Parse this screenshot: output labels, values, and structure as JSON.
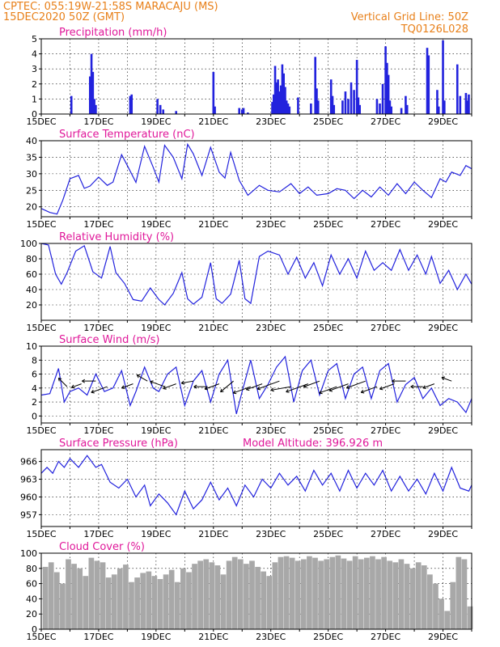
{
  "header": {
    "line1_left": "CPTEC:   055:19W-21:58S   MARACAJU (MS)",
    "line2_left": "15DEC2020 50Z (GMT)",
    "line1_right": "Vertical Grid Line: 50Z",
    "line2_right": "TQ0126L028"
  },
  "colors": {
    "header": "#e8801a",
    "title": "#e0189a",
    "series": "#2222dd",
    "cloud": "#a8a8a8"
  },
  "x_ticks": [
    "15DEC",
    "17DEC",
    "19DEC",
    "21DEC",
    "23DEC",
    "25DEC",
    "27DEC",
    "29DEC"
  ],
  "panels": [
    {
      "id": "precip",
      "title": "Precipitation (mm/h)",
      "extra": "",
      "yticks": [
        "0",
        "1",
        "2",
        "3",
        "4",
        "5"
      ],
      "ylim": [
        0,
        5
      ]
    },
    {
      "id": "temp",
      "title": "Surface Temperature (nC)",
      "extra": "",
      "yticks": [
        "20",
        "25",
        "30",
        "35",
        "40"
      ],
      "ylim": [
        17,
        40
      ]
    },
    {
      "id": "rh",
      "title": "Relative Humidity (%)",
      "extra": "",
      "yticks": [
        "20",
        "40",
        "60",
        "80",
        "100"
      ],
      "ylim": [
        0,
        100
      ]
    },
    {
      "id": "wind",
      "title": "Surface Wind (m/s)",
      "extra": "",
      "yticks": [
        "0",
        "2",
        "4",
        "6",
        "8",
        "10"
      ],
      "ylim": [
        -1,
        10
      ]
    },
    {
      "id": "pres",
      "title": "Surface Pressure (hPa)",
      "extra": "Model Altitude: 396.926 m",
      "yticks": [
        "957",
        "960",
        "963",
        "966"
      ],
      "ylim": [
        955,
        968
      ]
    },
    {
      "id": "cloud",
      "title": "Cloud Cover (%)",
      "extra": "",
      "yticks": [
        "0",
        "20",
        "40",
        "60",
        "80",
        "100"
      ],
      "ylim": [
        0,
        100
      ]
    }
  ],
  "chart_data": [
    {
      "type": "bar",
      "title": "Precipitation (mm/h)",
      "ylim": [
        0,
        5
      ],
      "x_unit": "day from 15DEC",
      "x": [
        1.05,
        1.7,
        1.75,
        1.8,
        1.85,
        1.9,
        3.1,
        3.15,
        4.05,
        4.15,
        4.25,
        4.7,
        6.0,
        6.05,
        6.9,
        7.0,
        7.05,
        7.2,
        8.05,
        8.1,
        8.15,
        8.2,
        8.25,
        8.3,
        8.35,
        8.4,
        8.45,
        8.5,
        8.55,
        8.6,
        8.65,
        8.95,
        9.4,
        9.55,
        9.6,
        9.65,
        10.1,
        10.15,
        10.2,
        10.5,
        10.6,
        10.7,
        10.8,
        10.9,
        11.0,
        11.05,
        11.1,
        11.7,
        11.8,
        11.9,
        12.0,
        12.05,
        12.1,
        12.15,
        12.2,
        12.55,
        12.7,
        12.75,
        13.45,
        13.5,
        13.8,
        13.85,
        14.0,
        14.05,
        14.5,
        14.6,
        14.8,
        14.85,
        14.9
      ],
      "values": [
        1.2,
        2.5,
        4.0,
        2.8,
        1.0,
        0.6,
        1.2,
        1.3,
        1.0,
        0.6,
        0.3,
        0.2,
        2.8,
        0.5,
        0.4,
        0.3,
        0.4,
        0.1,
        0.8,
        1.3,
        3.2,
        2.1,
        2.3,
        1.5,
        1.9,
        3.3,
        2.7,
        1.8,
        0.9,
        0.7,
        0.5,
        1.1,
        0.7,
        3.8,
        1.7,
        0.9,
        2.3,
        1.2,
        0.6,
        0.9,
        1.5,
        1.0,
        2.1,
        1.6,
        3.6,
        1.1,
        0.6,
        1.0,
        0.7,
        2.0,
        4.5,
        3.4,
        2.6,
        0.9,
        0.5,
        0.4,
        1.2,
        0.6,
        4.4,
        3.9,
        1.6,
        0.5,
        4.9,
        0.9,
        3.3,
        1.2,
        1.4,
        0.9,
        1.3
      ]
    },
    {
      "type": "line",
      "title": "Surface Temperature (nC)",
      "ylim": [
        17,
        40
      ],
      "x_unit": "day from 15DEC",
      "x": [
        0,
        0.3,
        0.55,
        0.75,
        1.0,
        1.3,
        1.5,
        1.7,
        2.0,
        2.3,
        2.5,
        2.8,
        3.0,
        3.3,
        3.6,
        3.9,
        4.1,
        4.3,
        4.6,
        4.9,
        5.1,
        5.3,
        5.6,
        5.9,
        6.2,
        6.4,
        6.6,
        6.9,
        7.2,
        7.4,
        7.6,
        7.9,
        8.3,
        8.7,
        9.0,
        9.3,
        9.6,
        10.0,
        10.3,
        10.6,
        10.9,
        11.2,
        11.5,
        11.8,
        12.1,
        12.4,
        12.7,
        13.0,
        13.3,
        13.6,
        13.9,
        14.1,
        14.3,
        14.6,
        14.8,
        15.0
      ],
      "values": [
        19.5,
        18.3,
        17.8,
        22.0,
        28.5,
        29.5,
        25.6,
        26.3,
        29.0,
        26.5,
        27.5,
        35.8,
        32.5,
        27.4,
        38.3,
        32.0,
        27.5,
        38.6,
        35.0,
        28.5,
        38.9,
        36.0,
        29.5,
        38.0,
        30.5,
        28.7,
        36.5,
        28.0,
        23.5,
        25.0,
        26.5,
        25.0,
        24.5,
        27.0,
        24.0,
        26.0,
        23.5,
        24.0,
        25.5,
        25.0,
        22.5,
        25.0,
        23.0,
        26.0,
        23.5,
        27.0,
        24.0,
        27.5,
        25.0,
        22.8,
        28.5,
        27.5,
        30.5,
        29.5,
        32.5,
        31.5
      ]
    },
    {
      "type": "line",
      "title": "Relative Humidity (%)",
      "ylim": [
        0,
        100
      ],
      "x_unit": "day from 15DEC",
      "x": [
        0,
        0.25,
        0.5,
        0.7,
        0.9,
        1.2,
        1.5,
        1.8,
        2.1,
        2.4,
        2.6,
        2.9,
        3.2,
        3.5,
        3.8,
        4.1,
        4.3,
        4.6,
        4.9,
        5.1,
        5.3,
        5.6,
        5.9,
        6.1,
        6.3,
        6.6,
        6.9,
        7.1,
        7.3,
        7.6,
        7.9,
        8.3,
        8.6,
        8.9,
        9.2,
        9.5,
        9.8,
        10.1,
        10.4,
        10.7,
        11.0,
        11.3,
        11.6,
        11.9,
        12.2,
        12.5,
        12.8,
        13.1,
        13.4,
        13.6,
        13.9,
        14.2,
        14.5,
        14.8,
        15.0
      ],
      "values": [
        100,
        98,
        60,
        47,
        62,
        90,
        97,
        63,
        55,
        96,
        62,
        48,
        27,
        25,
        42,
        27,
        20,
        35,
        62,
        28,
        21,
        30,
        75,
        28,
        22,
        34,
        78,
        28,
        22,
        83,
        90,
        85,
        60,
        82,
        55,
        75,
        45,
        85,
        60,
        80,
        55,
        90,
        65,
        75,
        65,
        92,
        65,
        85,
        60,
        83,
        48,
        65,
        40,
        60,
        47
      ]
    },
    {
      "type": "line",
      "title": "Surface Wind (m/s)",
      "ylim": [
        -1,
        10
      ],
      "x_unit": "day from 15DEC",
      "x": [
        0,
        0.3,
        0.6,
        0.8,
        1.0,
        1.3,
        1.6,
        1.9,
        2.2,
        2.5,
        2.8,
        3.1,
        3.3,
        3.6,
        3.9,
        4.1,
        4.4,
        4.7,
        5.0,
        5.3,
        5.6,
        5.9,
        6.2,
        6.5,
        6.8,
        7.0,
        7.3,
        7.6,
        7.9,
        8.2,
        8.5,
        8.8,
        9.1,
        9.4,
        9.7,
        10.0,
        10.3,
        10.6,
        10.9,
        11.2,
        11.5,
        11.8,
        12.1,
        12.4,
        12.7,
        13.0,
        13.3,
        13.6,
        13.9,
        14.2,
        14.5,
        14.8,
        15.0
      ],
      "values": [
        3.0,
        3.2,
        6.8,
        2.0,
        3.5,
        4.0,
        3.0,
        6.0,
        3.5,
        4.0,
        6.5,
        1.5,
        3.5,
        7.0,
        4.0,
        3.5,
        6.0,
        7.0,
        1.5,
        5.0,
        6.5,
        2.0,
        6.0,
        8.0,
        0.3,
        3.5,
        8.0,
        2.5,
        4.5,
        7.0,
        8.5,
        2.0,
        6.5,
        8.0,
        3.0,
        6.5,
        7.5,
        2.5,
        6.0,
        7.0,
        2.5,
        6.5,
        7.5,
        2.0,
        4.5,
        5.5,
        2.5,
        4.0,
        1.5,
        2.5,
        2.0,
        0.5,
        2.5
      ],
      "arrows_x": [
        0.9,
        1.4,
        1.9,
        2.3,
        3.2,
        3.7,
        4.3,
        4.7,
        5.3,
        5.8,
        6.2,
        6.7,
        7.3,
        7.7,
        8.3,
        8.7,
        9.3,
        9.7,
        10.3,
        10.7,
        11.3,
        11.7,
        12.3,
        12.7,
        13.3,
        13.7,
        14.3
      ],
      "arrows_speed": [
        2.0,
        1.5,
        2.5,
        3.5,
        2.0,
        2.0,
        3.0,
        2.5,
        2.0,
        2.5,
        3.0,
        3.5,
        4.0,
        3.5,
        5.5,
        4.5,
        5.5,
        3.5,
        4.0,
        4.5,
        4.5,
        3.5,
        3.0,
        2.5,
        2.0,
        2.0,
        1.5
      ],
      "arrows_dir_deg": [
        135,
        200,
        180,
        200,
        200,
        150,
        160,
        200,
        190,
        180,
        200,
        220,
        200,
        200,
        200,
        190,
        200,
        200,
        200,
        200,
        200,
        200,
        200,
        180,
        180,
        200,
        160
      ]
    },
    {
      "type": "line",
      "title": "Surface Pressure (hPa)",
      "ylim": [
        955,
        968
      ],
      "x_unit": "day from 15DEC",
      "x": [
        0,
        0.2,
        0.4,
        0.6,
        0.8,
        1.0,
        1.3,
        1.6,
        1.9,
        2.1,
        2.4,
        2.7,
        3.0,
        3.3,
        3.6,
        3.8,
        4.1,
        4.4,
        4.7,
        5.0,
        5.3,
        5.6,
        5.9,
        6.2,
        6.5,
        6.8,
        7.1,
        7.4,
        7.7,
        8.0,
        8.3,
        8.6,
        8.9,
        9.2,
        9.5,
        9.8,
        10.1,
        10.4,
        10.7,
        11.0,
        11.3,
        11.6,
        11.9,
        12.2,
        12.5,
        12.8,
        13.1,
        13.4,
        13.7,
        14.0,
        14.3,
        14.6,
        14.9,
        15.0
      ],
      "values": [
        964.0,
        965.0,
        964.0,
        966.0,
        965.0,
        966.5,
        965.0,
        967.0,
        965.0,
        965.5,
        962.5,
        961.5,
        963.0,
        960.0,
        962.0,
        958.5,
        960.5,
        959.0,
        957.0,
        961.0,
        958.0,
        959.5,
        962.5,
        959.5,
        961.5,
        958.5,
        962.0,
        960.0,
        963.0,
        961.5,
        964.0,
        962.0,
        963.5,
        961.0,
        964.5,
        962.0,
        964.0,
        961.0,
        964.5,
        961.5,
        964.0,
        962.0,
        964.5,
        961.0,
        963.5,
        961.0,
        963.0,
        960.5,
        964.0,
        961.0,
        965.0,
        961.5,
        961.0,
        962.0
      ]
    },
    {
      "type": "bar",
      "title": "Cloud Cover (%)",
      "ylim": [
        0,
        100
      ],
      "x_unit": "day from 15DEC",
      "x": [
        0.05,
        0.25,
        0.45,
        0.65,
        0.85,
        1.05,
        1.25,
        1.45,
        1.65,
        1.85,
        2.05,
        2.25,
        2.45,
        2.65,
        2.85,
        3.05,
        3.25,
        3.45,
        3.65,
        3.85,
        4.05,
        4.25,
        4.45,
        4.65,
        4.85,
        5.05,
        5.25,
        5.45,
        5.65,
        5.85,
        6.05,
        6.25,
        6.45,
        6.65,
        6.85,
        7.05,
        7.25,
        7.45,
        7.65,
        7.85,
        8.05,
        8.25,
        8.45,
        8.65,
        8.85,
        9.05,
        9.25,
        9.45,
        9.65,
        9.85,
        10.05,
        10.25,
        10.45,
        10.65,
        10.85,
        11.05,
        11.25,
        11.45,
        11.65,
        11.85,
        12.05,
        12.25,
        12.45,
        12.65,
        12.85,
        13.05,
        13.25,
        13.45,
        13.65,
        13.85,
        14.05,
        14.25,
        14.45,
        14.65,
        14.85
      ],
      "values": [
        82,
        88,
        75,
        60,
        92,
        86,
        80,
        70,
        94,
        90,
        88,
        68,
        72,
        80,
        85,
        62,
        68,
        74,
        76,
        70,
        66,
        72,
        78,
        62,
        80,
        75,
        86,
        90,
        92,
        88,
        84,
        72,
        90,
        95,
        92,
        86,
        90,
        82,
        76,
        70,
        88,
        95,
        96,
        94,
        90,
        92,
        96,
        94,
        90,
        92,
        95,
        97,
        93,
        90,
        96,
        92,
        94,
        96,
        92,
        95,
        90,
        88,
        92,
        86,
        80,
        88,
        84,
        72,
        60,
        40,
        24,
        62,
        95,
        92,
        30
      ]
    }
  ]
}
